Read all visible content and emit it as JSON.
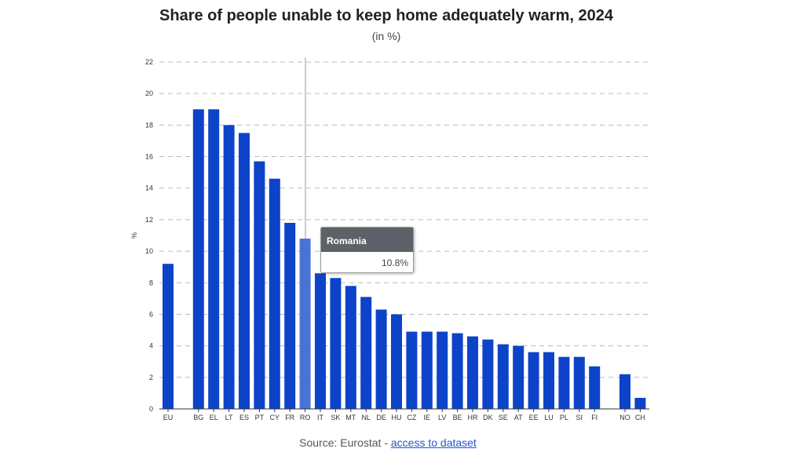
{
  "chart_data": {
    "type": "bar",
    "title": "Share of people unable to keep home adequately warm, 2024",
    "subtitle": "(in %)",
    "ylabel": "%",
    "xlabel": "",
    "ylim": [
      0,
      22
    ],
    "yticks": [
      0,
      2,
      4,
      6,
      8,
      10,
      12,
      14,
      16,
      18,
      20,
      22
    ],
    "grid": true,
    "categories": [
      "EU",
      "",
      "BG",
      "EL",
      "LT",
      "ES",
      "PT",
      "CY",
      "FR",
      "RO",
      "IT",
      "SK",
      "MT",
      "NL",
      "DE",
      "HU",
      "CZ",
      "IE",
      "LV",
      "BE",
      "HR",
      "DK",
      "SE",
      "AT",
      "EE",
      "LU",
      "PL",
      "SI",
      "FI",
      "",
      "NO",
      "CH"
    ],
    "values": [
      9.2,
      null,
      19.0,
      19.0,
      18.0,
      17.5,
      15.7,
      14.6,
      11.8,
      10.8,
      8.6,
      8.3,
      7.8,
      7.1,
      6.3,
      6.0,
      4.9,
      4.9,
      4.9,
      4.8,
      4.6,
      4.4,
      4.1,
      4.0,
      3.6,
      3.6,
      3.3,
      3.3,
      2.7,
      null,
      2.2,
      0.7
    ],
    "highlight": "RO",
    "colors": {
      "bar": "#0d43c9",
      "highlight": "#4a73d6"
    }
  },
  "tooltip": {
    "label": "Romania",
    "value": "10.8%"
  },
  "source": {
    "prefix": "Source: Eurostat - ",
    "link": "access to dataset"
  }
}
